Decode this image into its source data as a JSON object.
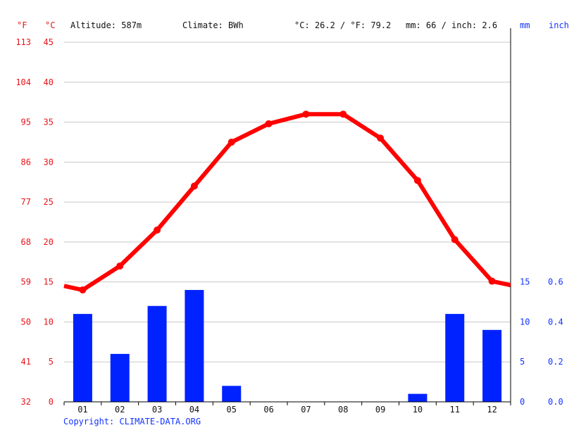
{
  "header": {
    "unit_f": "°F",
    "unit_c": "°C",
    "altitude": "Altitude: 587m",
    "climate": "Climate: BWh",
    "avg_temp": "°C: 26.2 / °F: 79.2",
    "precip": "mm: 66 / inch: 2.6",
    "unit_mm": "mm",
    "unit_inch": "inch"
  },
  "copyright": "Copyright: CLIMATE-DATA.ORG",
  "colors": {
    "temperature": "#ff0000",
    "precipitation": "#0022ff",
    "axis_left": "#e8141c",
    "axis_right": "#1433ff"
  },
  "chart_data": {
    "type": "bar+line",
    "categories": [
      "01",
      "02",
      "03",
      "04",
      "05",
      "06",
      "07",
      "08",
      "09",
      "10",
      "11",
      "12"
    ],
    "series": [
      {
        "kind": "line",
        "axis": "left",
        "values": [
          14.0,
          17.0,
          21.5,
          27.0,
          32.5,
          34.8,
          36.0,
          36.0,
          33.0,
          27.7,
          20.3,
          15.1
        ]
      },
      {
        "kind": "bar",
        "axis": "right",
        "values": [
          11,
          6,
          12,
          14,
          2,
          0,
          0,
          0,
          0,
          1,
          11,
          9
        ]
      }
    ],
    "line_edge_values": {
      "start": 14.5,
      "end": 14.6
    },
    "left_axis": {
      "ylim": [
        0,
        45
      ],
      "ticks_c": [
        "0",
        "5",
        "10",
        "15",
        "20",
        "25",
        "30",
        "35",
        "40",
        "45"
      ],
      "ticks_f": [
        "32",
        "41",
        "50",
        "59",
        "68",
        "77",
        "86",
        "95",
        "104",
        "113"
      ]
    },
    "right_axis": {
      "ylim": [
        0,
        45
      ],
      "tick_values": [
        0,
        5,
        10,
        15
      ],
      "ticks_mm": [
        "0",
        "5",
        "10",
        "15"
      ],
      "ticks_inch": [
        "0.0",
        "0.2",
        "0.4",
        "0.6"
      ]
    },
    "grid": true
  }
}
